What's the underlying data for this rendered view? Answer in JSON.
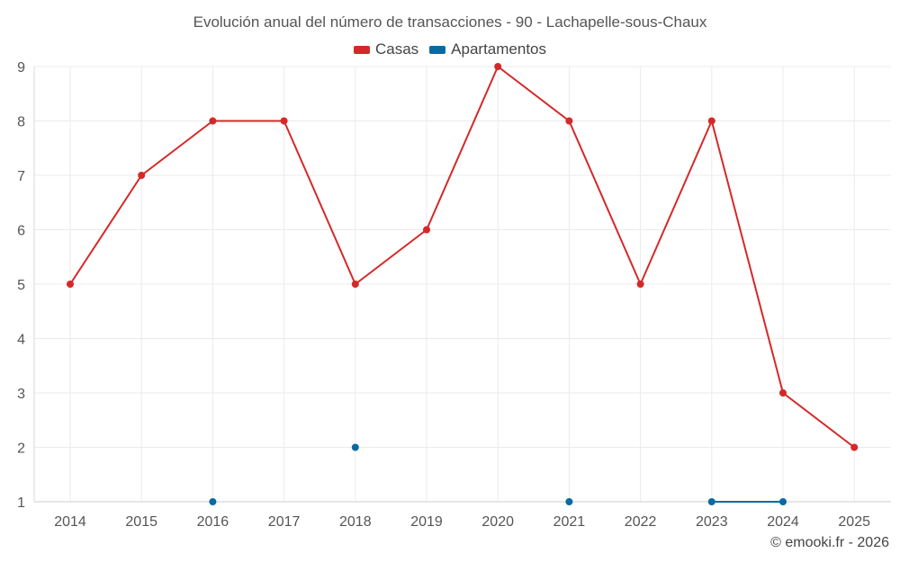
{
  "chart_data": {
    "type": "line",
    "title": "Evolución anual del número de transacciones - 90 - Lachapelle-sous-Chaux",
    "x": [
      "2014",
      "2015",
      "2016",
      "2017",
      "2018",
      "2019",
      "2020",
      "2021",
      "2022",
      "2023",
      "2024",
      "2025"
    ],
    "ylim": [
      1,
      9
    ],
    "yticks": [
      1,
      2,
      3,
      4,
      5,
      6,
      7,
      8,
      9
    ],
    "grid": true,
    "legend_position": "top-center",
    "series": [
      {
        "name": "Casas",
        "color": "#d62828",
        "values": [
          5,
          7,
          8,
          8,
          5,
          6,
          9,
          8,
          5,
          8,
          3,
          2
        ]
      },
      {
        "name": "Apartamentos",
        "color": "#0a6aa1",
        "values": [
          null,
          null,
          1,
          null,
          2,
          null,
          null,
          1,
          null,
          1,
          1,
          null
        ]
      }
    ]
  },
  "credit": "© emooki.fr - 2026"
}
